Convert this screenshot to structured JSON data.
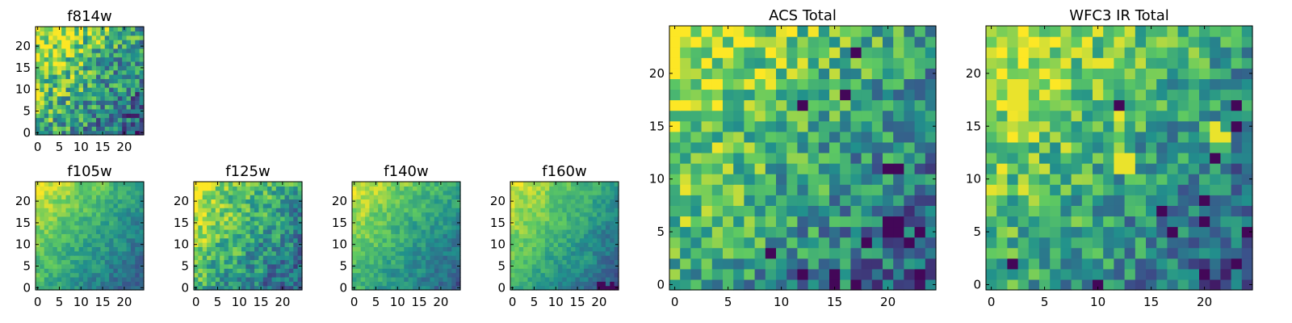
{
  "figure": {
    "background": "#ffffff"
  },
  "colormap": [
    "#440154",
    "#3b528b",
    "#21918c",
    "#5ec962",
    "#fde725"
  ],
  "chart_data": [
    {
      "id": "f814w",
      "type": "heatmap",
      "title": "f814w",
      "grid": [
        25,
        25
      ],
      "xticks": [
        "0",
        "5",
        "10",
        "15",
        "20"
      ],
      "yticks": [
        "0",
        "5",
        "10",
        "15",
        "20"
      ],
      "grid_lines": false,
      "colormap": "viridis",
      "seed": 11,
      "noise": 0.3,
      "smooth": 0,
      "bright_spots": [],
      "dark_spots": []
    },
    {
      "id": "f105w",
      "type": "heatmap",
      "title": "f105w",
      "grid": [
        25,
        25
      ],
      "xticks": [
        "0",
        "5",
        "10",
        "15",
        "20"
      ],
      "yticks": [
        "0",
        "5",
        "10",
        "15",
        "20"
      ],
      "grid_lines": false,
      "colormap": "viridis",
      "seed": 23,
      "noise": 0.18,
      "smooth": 1,
      "bright_spots": [],
      "dark_spots": []
    },
    {
      "id": "f125w",
      "type": "heatmap",
      "title": "f125w",
      "grid": [
        25,
        25
      ],
      "xticks": [
        "0",
        "5",
        "10",
        "15",
        "20"
      ],
      "yticks": [
        "0",
        "5",
        "10",
        "15",
        "20"
      ],
      "grid_lines": false,
      "colormap": "viridis",
      "seed": 37,
      "noise": 0.34,
      "smooth": 1,
      "bright_spots": [],
      "dark_spots": []
    },
    {
      "id": "f140w",
      "type": "heatmap",
      "title": "f140w",
      "grid": [
        25,
        25
      ],
      "xticks": [
        "0",
        "5",
        "10",
        "15",
        "20"
      ],
      "yticks": [
        "0",
        "5",
        "10",
        "15",
        "20"
      ],
      "grid_lines": false,
      "colormap": "viridis",
      "seed": 41,
      "noise": 0.18,
      "smooth": 1,
      "bright_spots": [],
      "dark_spots": []
    },
    {
      "id": "f160w",
      "type": "heatmap",
      "title": "f160w",
      "grid": [
        25,
        25
      ],
      "xticks": [
        "0",
        "5",
        "10",
        "15",
        "20"
      ],
      "yticks": [
        "0",
        "5",
        "10",
        "15",
        "20"
      ],
      "grid_lines": false,
      "colormap": "viridis",
      "seed": 53,
      "noise": 0.16,
      "smooth": 1,
      "bright_spots": [],
      "dark_spots": [
        [
          20,
          0
        ],
        [
          21,
          0
        ],
        [
          22,
          0
        ],
        [
          23,
          0
        ],
        [
          24,
          0
        ],
        [
          20,
          1
        ],
        [
          21,
          1
        ],
        [
          23,
          1
        ]
      ]
    },
    {
      "id": "acs_total",
      "type": "heatmap",
      "title": "ACS Total",
      "grid": [
        25,
        25
      ],
      "xticks": [
        "0",
        "5",
        "10",
        "15",
        "20"
      ],
      "yticks": [
        "0",
        "5",
        "10",
        "15",
        "20"
      ],
      "grid_lines": false,
      "colormap": "viridis",
      "seed": 67,
      "noise": 0.26,
      "smooth": 0,
      "bright_spots": [],
      "dark_spots": [
        [
          17,
          22
        ],
        [
          20,
          11
        ],
        [
          20,
          6
        ],
        [
          21,
          6
        ],
        [
          21,
          5
        ],
        [
          20,
          5
        ],
        [
          23,
          5
        ],
        [
          18,
          4
        ],
        [
          22,
          4
        ],
        [
          12,
          1
        ],
        [
          15,
          1
        ],
        [
          15,
          0
        ],
        [
          23,
          1
        ],
        [
          17,
          0
        ],
        [
          16,
          18
        ],
        [
          12,
          17
        ],
        [
          9,
          3
        ],
        [
          21,
          11
        ]
      ]
    },
    {
      "id": "wfc3_total",
      "type": "heatmap",
      "title": "WFC3 IR Total",
      "grid": [
        25,
        25
      ],
      "xticks": [
        "0",
        "5",
        "10",
        "15",
        "20"
      ],
      "yticks": [
        "0",
        "5",
        "10",
        "15",
        "20"
      ],
      "grid_lines": false,
      "colormap": "viridis",
      "seed": 79,
      "noise": 0.24,
      "smooth": 0,
      "bright_spots": [
        [
          2,
          18
        ],
        [
          3,
          18
        ],
        [
          2,
          19
        ],
        [
          3,
          19
        ],
        [
          2,
          17
        ],
        [
          3,
          17
        ],
        [
          12,
          11
        ],
        [
          13,
          11
        ],
        [
          12,
          12
        ],
        [
          13,
          12
        ],
        [
          10,
          21
        ],
        [
          11,
          21
        ],
        [
          7,
          21
        ],
        [
          21,
          14
        ],
        [
          22,
          14
        ],
        [
          21,
          15
        ],
        [
          12,
          16
        ]
      ],
      "dark_spots": [
        [
          12,
          17
        ],
        [
          23,
          17
        ],
        [
          23,
          15
        ],
        [
          21,
          12
        ],
        [
          20,
          8
        ],
        [
          16,
          7
        ],
        [
          20,
          6
        ],
        [
          24,
          5
        ],
        [
          2,
          2
        ],
        [
          23,
          2
        ],
        [
          20,
          1
        ],
        [
          10,
          0
        ],
        [
          17,
          5
        ]
      ]
    }
  ]
}
